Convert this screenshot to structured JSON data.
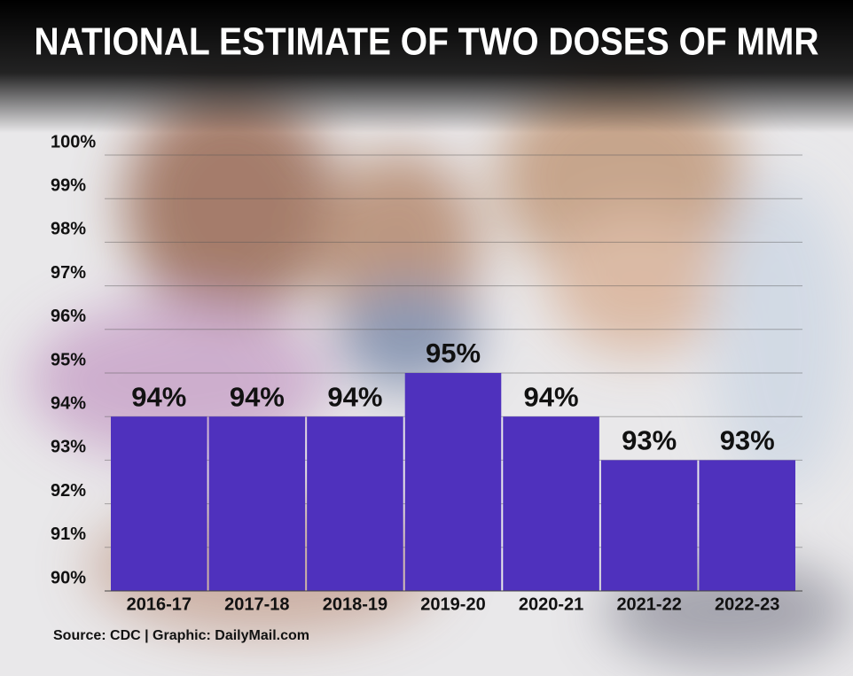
{
  "chart_data": {
    "type": "bar",
    "title": "NATIONAL ESTIMATE OF TWO DOSES OF MMR",
    "categories": [
      "2016-17",
      "2017-18",
      "2018-19",
      "2019-20",
      "2020-21",
      "2021-22",
      "2022-23"
    ],
    "values": [
      94,
      94,
      94,
      95,
      94,
      93,
      93
    ],
    "value_labels": [
      "94%",
      "94%",
      "94%",
      "95%",
      "94%",
      "93%",
      "93%"
    ],
    "color": "#4f31bd",
    "ylim": [
      90,
      100
    ],
    "yticks": [
      {
        "value": 90,
        "label": "90%"
      },
      {
        "value": 91,
        "label": "91%"
      },
      {
        "value": 92,
        "label": "92%"
      },
      {
        "value": 93,
        "label": "93%"
      },
      {
        "value": 94,
        "label": "94%"
      },
      {
        "value": 95,
        "label": "95%"
      },
      {
        "value": 96,
        "label": "96%"
      },
      {
        "value": 97,
        "label": "97%"
      },
      {
        "value": 98,
        "label": "98%"
      },
      {
        "value": 99,
        "label": "99%"
      },
      {
        "value": 100,
        "label": "100%"
      }
    ],
    "grid": true,
    "source": "Source: CDC  |  Graphic: DailyMail.com"
  }
}
